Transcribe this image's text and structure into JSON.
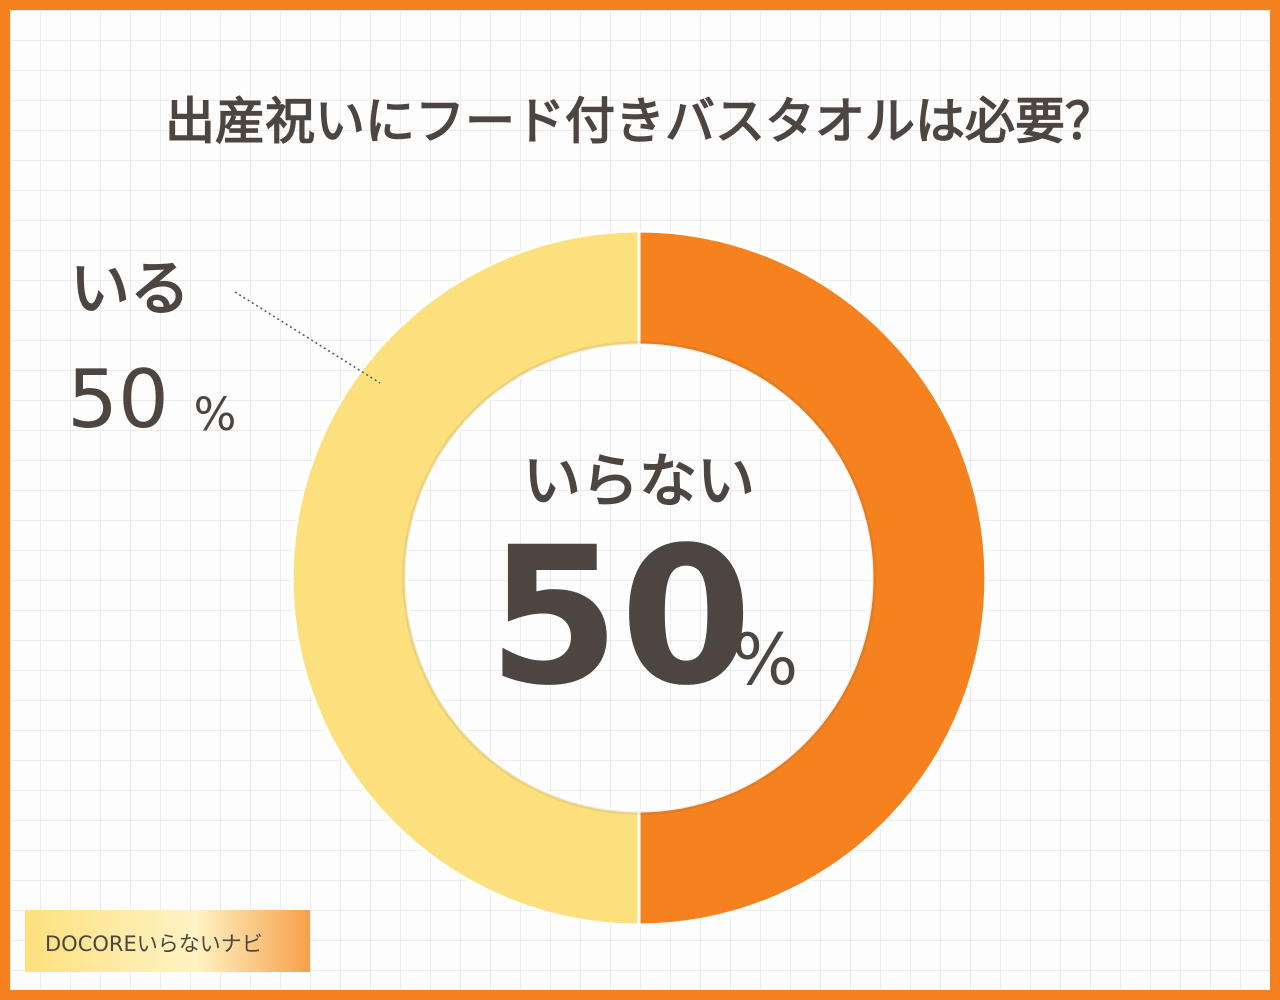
{
  "chart_data": {
    "type": "donut",
    "title": "出産祝いにフード付きバスタオルは必要？",
    "categories": [
      "いらない",
      "いる"
    ],
    "values": [
      50,
      50
    ],
    "unit": "%",
    "colors": [
      "#f5821f",
      "#fde07e"
    ],
    "source": "DOCOREいらないナビ"
  }
}
